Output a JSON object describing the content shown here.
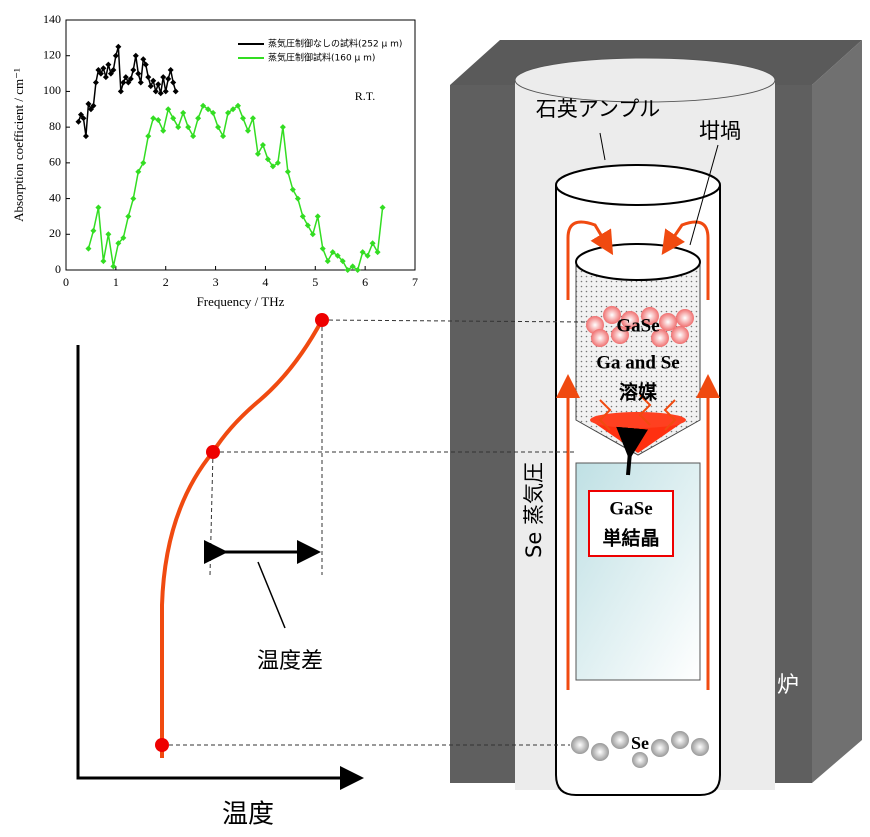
{
  "chart_data": {
    "type": "line",
    "x_label": "Frequency / THz",
    "y_label": "Absorption coefficient / cm⁻¹",
    "annotation": "R.T.",
    "xlim": [
      0,
      7
    ],
    "xticks": [
      0,
      1,
      2,
      3,
      4,
      5,
      6,
      7
    ],
    "ylim": [
      0,
      140
    ],
    "yticks": [
      0,
      20,
      40,
      60,
      80,
      100,
      120,
      140
    ],
    "legend": "upper right",
    "series": [
      {
        "name": "蒸気圧制御なしの試料(252 μ m)",
        "color": "#000000",
        "x": [
          0.25,
          0.3,
          0.35,
          0.4,
          0.45,
          0.5,
          0.55,
          0.6,
          0.65,
          0.7,
          0.75,
          0.8,
          0.85,
          0.9,
          0.95,
          1.0,
          1.05,
          1.1,
          1.15,
          1.2,
          1.25,
          1.3,
          1.35,
          1.4,
          1.45,
          1.5,
          1.55,
          1.6,
          1.65,
          1.7,
          1.75,
          1.8,
          1.85,
          1.9,
          1.95,
          2.0,
          2.05,
          2.1,
          2.15,
          2.2
        ],
        "values": [
          83,
          87,
          85,
          75,
          93,
          90,
          92,
          105,
          112,
          110,
          113,
          108,
          115,
          110,
          112,
          120,
          125,
          100,
          105,
          108,
          105,
          107,
          112,
          120,
          110,
          105,
          118,
          115,
          108,
          103,
          106,
          100,
          104,
          99,
          108,
          100,
          107,
          112,
          105,
          100
        ]
      },
      {
        "name": "蒸気圧制御試料(160 μ m)",
        "color": "#33dd22",
        "x": [
          0.45,
          0.55,
          0.65,
          0.75,
          0.85,
          0.95,
          1.05,
          1.15,
          1.25,
          1.35,
          1.45,
          1.55,
          1.65,
          1.75,
          1.85,
          1.95,
          2.05,
          2.15,
          2.25,
          2.35,
          2.45,
          2.55,
          2.65,
          2.75,
          2.85,
          2.95,
          3.05,
          3.15,
          3.25,
          3.35,
          3.45,
          3.55,
          3.65,
          3.75,
          3.85,
          3.95,
          4.05,
          4.15,
          4.25,
          4.35,
          4.45,
          4.55,
          4.65,
          4.75,
          4.85,
          4.95,
          5.05,
          5.15,
          5.25,
          5.35,
          5.45,
          5.55,
          5.65,
          5.75,
          5.85,
          5.95,
          6.05,
          6.15,
          6.25,
          6.35
        ],
        "values": [
          12,
          22,
          35,
          5,
          20,
          2,
          15,
          18,
          30,
          40,
          55,
          60,
          75,
          85,
          84,
          78,
          90,
          85,
          80,
          88,
          80,
          75,
          85,
          92,
          90,
          88,
          80,
          75,
          88,
          90,
          92,
          85,
          78,
          85,
          65,
          70,
          62,
          58,
          60,
          80,
          55,
          45,
          40,
          30,
          25,
          20,
          30,
          12,
          5,
          10,
          8,
          5,
          0,
          2,
          0,
          10,
          8,
          15,
          10,
          35
        ]
      }
    ]
  },
  "diagram": {
    "ampoule": "石英アンプル",
    "crucible": "坩堝",
    "melt_top": "GaSe",
    "solvent_1": "Ga and Se",
    "solvent_2": "溶媒",
    "vapor": "Se 蒸気圧",
    "crystal_1": "GaSe",
    "crystal_2": "単結晶",
    "se_source": "Se",
    "furnace": "炉",
    "temp_diff": "温度差",
    "temperature": "温度"
  }
}
